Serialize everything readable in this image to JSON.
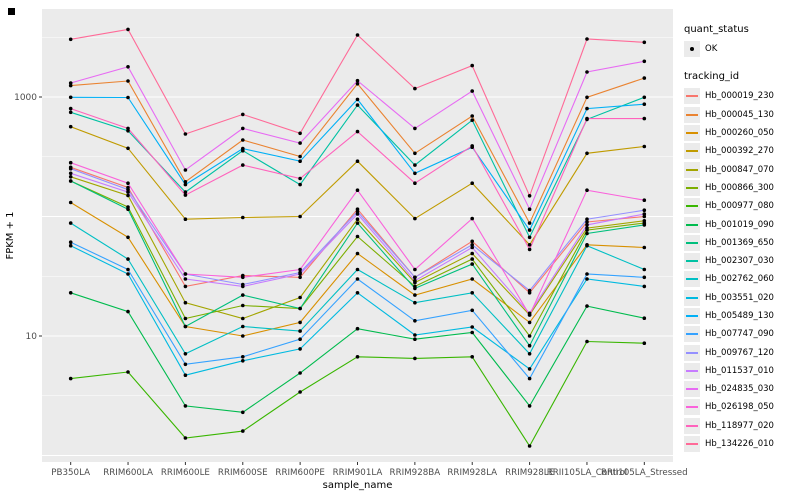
{
  "figure": {
    "background": "#FFFFFF",
    "panel_background": "#EBEBEB",
    "grid_color": "#FFFFFF",
    "tick_label_color": "#4D4D4D",
    "axis_title_color": "#000000",
    "point_color": "#000000"
  },
  "legend": {
    "quant_title": "quant_status",
    "quant_ok_label": "OK",
    "tracking_title": "tracking_id"
  },
  "chart_data": {
    "type": "line",
    "title": "",
    "xlabel": "sample_name",
    "ylabel": "FPKM + 1",
    "y_scale": "log10",
    "y_tick_labels": [
      "1000",
      "10"
    ],
    "y_tick_values": [
      1000,
      10
    ],
    "y_major_grid": [
      1,
      10,
      100,
      1000
    ],
    "y_minor_grid": [
      3.162,
      31.62,
      316.2,
      3162
    ],
    "ylim_log": [
      0.88,
      5450
    ],
    "grid": true,
    "legend_position": "right",
    "point_marker": "black-dot",
    "quant_status_all_points": "OK",
    "categories": [
      "PB350LA",
      "RRIM600LA",
      "RRIM600LE",
      "RRIM600SE",
      "RRIM600PE",
      "RRIM901LA",
      "RRIM928BA",
      "RRIM928LA",
      "RRIM928LE",
      "RRII105LA_Control",
      "RRII105LA_Stressed"
    ],
    "series": [
      {
        "name": "Hb_000019_230",
        "color": "#F8766D",
        "values": [
          258,
          175,
          26,
          32,
          31,
          115,
          31,
          62,
          23,
          90,
          100
        ]
      },
      {
        "name": "Hb_000045_130",
        "color": "#EA8331",
        "values": [
          1245,
          1360,
          195,
          437,
          318,
          1290,
          338,
          694,
          88,
          995,
          1440
        ]
      },
      {
        "name": "Hb_000260_050",
        "color": "#D89000",
        "values": [
          131,
          67,
          12,
          10,
          13,
          49,
          22,
          30,
          13,
          58,
          55
        ]
      },
      {
        "name": "Hb_000392_270",
        "color": "#C09B00",
        "values": [
          564,
          372,
          95,
          98,
          100,
          290,
          96,
          190,
          58,
          338,
          385
        ]
      },
      {
        "name": "Hb_000847_070",
        "color": "#A3A500",
        "values": [
          215,
          150,
          19,
          14,
          21,
          95,
          28,
          49,
          15,
          80,
          92
        ]
      },
      {
        "name": "Hb_000866_300",
        "color": "#7CAE00",
        "values": [
          198,
          120,
          14,
          18,
          17,
          68,
          26,
          44,
          10,
          77,
          88
        ]
      },
      {
        "name": "Hb_000977_080",
        "color": "#39B600",
        "values": [
          4.4,
          5.0,
          1.4,
          1.6,
          3.4,
          6.7,
          6.5,
          6.7,
          1.2,
          9.0,
          8.7
        ]
      },
      {
        "name": "Hb_001019_090",
        "color": "#00BB4E",
        "values": [
          23,
          16,
          2.6,
          2.3,
          4.9,
          11.5,
          9.4,
          10.7,
          2.6,
          17.8,
          14.1
        ]
      },
      {
        "name": "Hb_001369_650",
        "color": "#00BF7D",
        "values": [
          198,
          115,
          12,
          22,
          17,
          88,
          25,
          40,
          8.3,
          72,
          85
        ]
      },
      {
        "name": "Hb_002307_030",
        "color": "#00C1A3",
        "values": [
          745,
          521,
          160,
          355,
          185,
          855,
          269,
          640,
          67,
          650,
          995
        ]
      },
      {
        "name": "Hb_002762_060",
        "color": "#00BFC4",
        "values": [
          88,
          44,
          7.1,
          12,
          11,
          36,
          19,
          23,
          7.1,
          57,
          36
        ]
      },
      {
        "name": "Hb_003551_020",
        "color": "#00BAE0",
        "values": [
          57,
          33,
          4.7,
          6.2,
          7.8,
          23,
          10.2,
          11.9,
          5.3,
          30,
          26
        ]
      },
      {
        "name": "Hb_005489_130",
        "color": "#00B0F6",
        "values": [
          995,
          990,
          185,
          370,
          290,
          955,
          230,
          380,
          77,
          800,
          870
        ]
      },
      {
        "name": "Hb_007747_090",
        "color": "#35A2FF",
        "values": [
          61,
          36,
          5.8,
          6.7,
          9.4,
          30,
          13.4,
          16.4,
          4.4,
          33,
          31
        ]
      },
      {
        "name": "Hb_009767_120",
        "color": "#9590FF",
        "values": [
          251,
          168,
          33,
          27,
          34,
          110,
          31,
          58,
          24,
          95,
          113
        ]
      },
      {
        "name": "Hb_011537_010",
        "color": "#C77CFF",
        "values": [
          230,
          160,
          30,
          26,
          33,
          105,
          29,
          55,
          15.5,
          85,
          105
        ]
      },
      {
        "name": "Hb_024835_030",
        "color": "#E76BF3",
        "values": [
          1310,
          1790,
          245,
          546,
          411,
          1370,
          546,
          1120,
          115,
          1620,
          1990
        ]
      },
      {
        "name": "Hb_026198_050",
        "color": "#FA62DB",
        "values": [
          282,
          190,
          33,
          31,
          36,
          166,
          36,
          96,
          15,
          166,
          137
        ]
      },
      {
        "name": "Hb_118977_020",
        "color": "#FF62BC",
        "values": [
          800,
          546,
          151,
          269,
          208,
          513,
          190,
          390,
          53,
          660,
          660
        ]
      },
      {
        "name": "Hb_134226_010",
        "color": "#FF6A98",
        "values": [
          3040,
          3680,
          490,
          715,
          497,
          3300,
          1175,
          1830,
          149,
          3060,
          2870
        ]
      }
    ]
  }
}
